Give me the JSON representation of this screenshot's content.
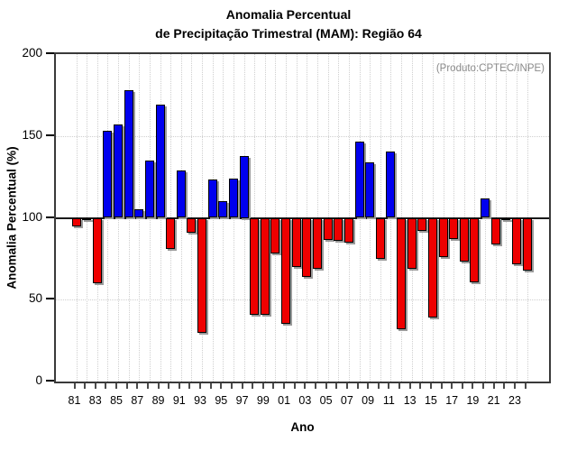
{
  "title": {
    "line1": "Anomalia Percentual",
    "line2": "de Precipitação Trimestral (MAM): Região 64"
  },
  "annotation": "(Produto:CPTEC/INPE)",
  "chart_data": {
    "type": "bar",
    "title": "Anomalia Percentual de Precipitação Trimestral (MAM): Região 64",
    "xlabel": "Ano",
    "ylabel": "Anomalia Percentual (%)",
    "ylim": [
      0,
      200
    ],
    "yticks": [
      0,
      50,
      100,
      150,
      200
    ],
    "baseline": 100,
    "grid": "dotted vertical per year, dotted horizontal at 50/100/150",
    "legend": "none",
    "categories": [
      "81",
      "82",
      "83",
      "84",
      "85",
      "86",
      "87",
      "88",
      "89",
      "90",
      "91",
      "92",
      "93",
      "94",
      "95",
      "96",
      "97",
      "98",
      "99",
      "00",
      "01",
      "02",
      "03",
      "04",
      "05",
      "06",
      "07",
      "08",
      "09",
      "10",
      "11",
      "12",
      "13",
      "14",
      "15",
      "16",
      "17",
      "18",
      "19",
      "20",
      "21",
      "22",
      "23",
      "24"
    ],
    "x_tick_labels_shown": [
      "81",
      "83",
      "85",
      "87",
      "89",
      "91",
      "93",
      "95",
      "97",
      "99",
      "01",
      "03",
      "05",
      "07",
      "09",
      "11",
      "13",
      "15",
      "17",
      "19",
      "21",
      "23"
    ],
    "values": [
      95,
      99,
      60,
      153,
      157,
      178,
      105,
      135,
      169,
      81,
      129,
      91,
      30,
      123.5,
      110,
      124,
      137.5,
      41,
      41,
      78.5,
      35.5,
      70,
      64,
      69,
      86.5,
      86,
      85,
      146.5,
      134,
      75,
      140.5,
      32,
      69,
      92,
      39,
      76,
      87,
      73.5,
      60.5,
      112,
      84,
      98.5,
      71.5,
      68
    ],
    "colors": {
      "above_baseline": "#0000ee",
      "below_baseline": "#ee0000",
      "bar_outline": "#000000",
      "bar_shadow": "#9b9b9b",
      "grid": "#cfcfcf",
      "frame": "#3a3a3a",
      "annotation_text": "#8a8a8a"
    }
  }
}
